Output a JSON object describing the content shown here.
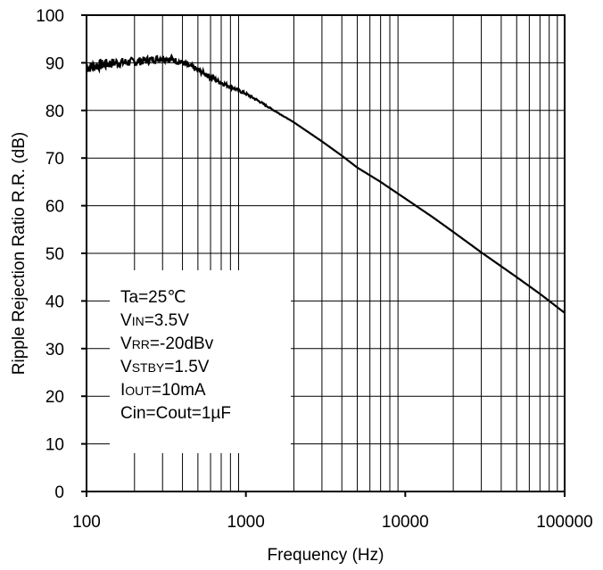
{
  "chart_data": {
    "type": "line",
    "xlabel": "Frequency (Hz)",
    "ylabel": "Ripple Rejection Ratio R.R. (dB)",
    "x_scale": "log",
    "xlim": [
      100,
      100000
    ],
    "ylim": [
      0,
      100
    ],
    "x_ticks": [
      "100",
      "1000",
      "10000",
      "100000"
    ],
    "y_ticks": [
      "0",
      "10",
      "20",
      "30",
      "40",
      "50",
      "60",
      "70",
      "80",
      "90",
      "100"
    ],
    "grid": true,
    "series": [
      {
        "x": [
          100,
          120,
          150,
          200,
          250,
          300,
          350,
          400,
          500,
          600,
          700,
          800,
          1000,
          1200,
          1500,
          2000,
          3000,
          4000,
          5000,
          7000,
          10000,
          15000,
          20000,
          30000,
          50000,
          70000,
          100000
        ],
        "y": [
          89,
          89.5,
          90,
          90.2,
          90.6,
          91,
          90.6,
          90,
          88.5,
          87,
          85.8,
          85,
          83.5,
          82,
          80,
          77.5,
          73.5,
          70.5,
          68,
          65,
          61.5,
          57.5,
          54.5,
          50.2,
          45,
          41.5,
          37.5
        ]
      }
    ],
    "annotation_lines": [
      [
        {
          "t": "Ta=25℃"
        }
      ],
      [
        {
          "t": "V"
        },
        {
          "t": "IN",
          "small": true
        },
        {
          "t": "=3.5V"
        }
      ],
      [
        {
          "t": "V"
        },
        {
          "t": "RR",
          "small": true
        },
        {
          "t": "=-20dBv"
        }
      ],
      [
        {
          "t": "V"
        },
        {
          "t": "STBY",
          "small": true
        },
        {
          "t": "=1.5V"
        }
      ],
      [
        {
          "t": "I"
        },
        {
          "t": "OUT",
          "small": true
        },
        {
          "t": "=10mA"
        }
      ],
      [
        {
          "t": "Cin=Cout=1µF"
        }
      ]
    ]
  }
}
